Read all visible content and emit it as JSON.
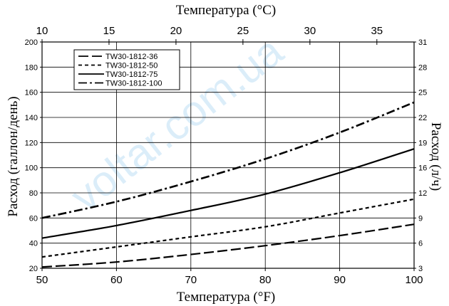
{
  "watermark": "voltar.com.ua",
  "chart_data": {
    "type": "line",
    "xlabel_bottom": "Температура (°F)",
    "xlabel_top": "Температура (°С)",
    "ylabel_left": "Расход (галлон/день)",
    "ylabel_right": "Расход (л/ч)",
    "xlim": [
      50,
      100
    ],
    "ylim": [
      20,
      200
    ],
    "x_ticks": [
      50,
      60,
      70,
      80,
      90,
      100
    ],
    "y_ticks": [
      20,
      40,
      60,
      80,
      100,
      120,
      140,
      160,
      180,
      200
    ],
    "top_ticks_c": [
      10,
      15,
      20,
      25,
      30,
      35
    ],
    "right_ticks_lph": [
      3,
      6,
      9,
      12,
      16,
      19,
      22,
      25,
      28,
      31
    ],
    "grid": true,
    "legend_position": "top-left",
    "series": [
      {
        "name": "TW30-1812-36",
        "x": [
          50,
          60,
          70,
          80,
          90,
          100
        ],
        "y": [
          21,
          25,
          31,
          38,
          46,
          55
        ]
      },
      {
        "name": "TW30-1812-50",
        "x": [
          50,
          60,
          70,
          80,
          90,
          100
        ],
        "y": [
          29,
          37,
          45,
          53,
          64,
          75
        ]
      },
      {
        "name": "TW30-1812-75",
        "x": [
          50,
          60,
          70,
          80,
          90,
          100
        ],
        "y": [
          44,
          54,
          66,
          79,
          96,
          115
        ]
      },
      {
        "name": "TW30-1812-100",
        "x": [
          50,
          60,
          70,
          80,
          90,
          100
        ],
        "y": [
          60,
          73,
          89,
          107,
          128,
          152
        ]
      }
    ]
  }
}
